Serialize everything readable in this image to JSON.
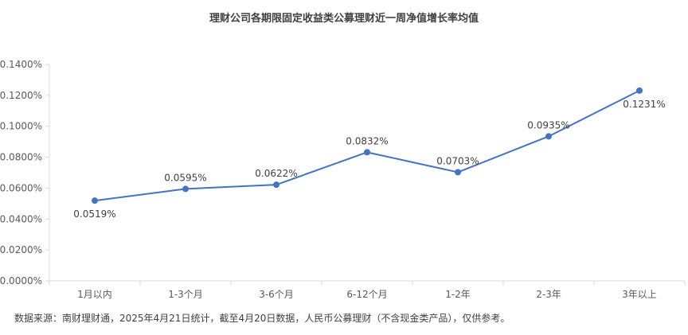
{
  "chart_data": {
    "type": "line",
    "title": "理财公司各期限固定收益类公募理财近一周净值增长率均值",
    "xlabel": "",
    "ylabel": "",
    "categories": [
      "1月以内",
      "1-3个月",
      "3-6个月",
      "6-12个月",
      "1-2年",
      "2-3年",
      "3年以上"
    ],
    "series": [
      {
        "values": [
          0.0519,
          0.0595,
          0.0622,
          0.0832,
          0.0703,
          0.0935,
          0.1231
        ],
        "labels": [
          "0.0519%",
          "0.0595%",
          "0.0622%",
          "0.0832%",
          "0.0703%",
          "0.0935%",
          "0.1231%"
        ]
      }
    ],
    "ylim": [
      0,
      0.14
    ],
    "y_ticks": [
      "0.0000%",
      "0.0200%",
      "0.0400%",
      "0.0600%",
      "0.0800%",
      "0.1000%",
      "0.1200%",
      "0.1400%"
    ],
    "grid": false,
    "legend": "none",
    "line_color": "#4472C4",
    "axis_color": "#D9D9D9"
  },
  "footer": {
    "source": "数据来源：南财理财通，2025年4月21日统计，截至4月20日数据，人民币公募理财（不含现金类产品），仅供参考。"
  }
}
